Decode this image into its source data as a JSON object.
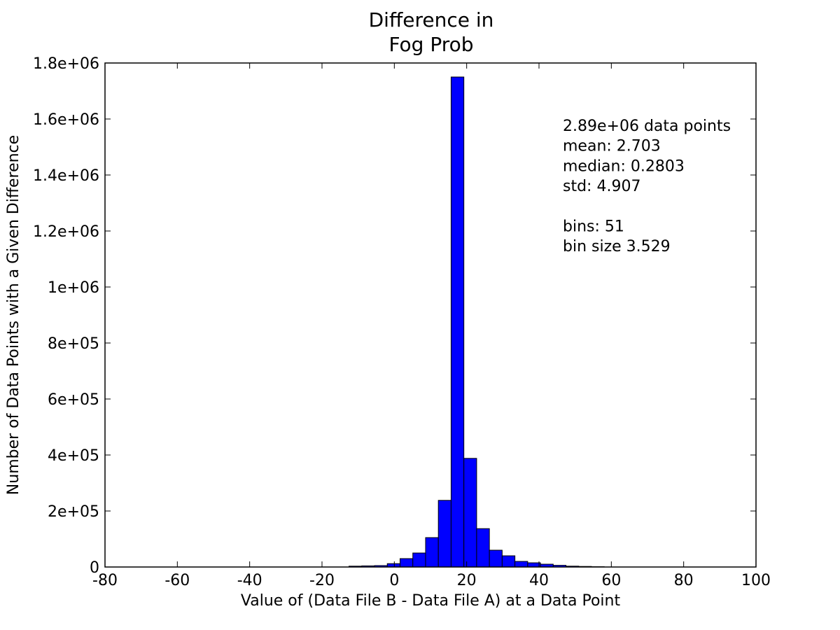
{
  "chart_data": {
    "type": "bar",
    "title": [
      "Difference in",
      "Fog Prob"
    ],
    "xlabel": "Value of (Data File B - Data File A) at a Data Point",
    "ylabel": "Number of Data Points with a Given Difference",
    "xlim": [
      -80,
      100
    ],
    "ylim": [
      0,
      1800000
    ],
    "grid": false,
    "bar_color": "#0000ff",
    "x_ticks": [
      {
        "value": -80,
        "label": "-80"
      },
      {
        "value": -60,
        "label": "-60"
      },
      {
        "value": -40,
        "label": "-40"
      },
      {
        "value": -20,
        "label": "-20"
      },
      {
        "value": 0,
        "label": "0"
      },
      {
        "value": 20,
        "label": "20"
      },
      {
        "value": 40,
        "label": "40"
      },
      {
        "value": 60,
        "label": "60"
      },
      {
        "value": 80,
        "label": "80"
      },
      {
        "value": 100,
        "label": "100"
      }
    ],
    "y_ticks": [
      {
        "value": 0,
        "label": "0"
      },
      {
        "value": 200000,
        "label": "2e+05"
      },
      {
        "value": 400000,
        "label": "4e+05"
      },
      {
        "value": 600000,
        "label": "6e+05"
      },
      {
        "value": 800000,
        "label": "8e+05"
      },
      {
        "value": 1000000,
        "label": "1e+06"
      },
      {
        "value": 1200000,
        "label": "1.2e+06"
      },
      {
        "value": 1400000,
        "label": "1.4e+06"
      },
      {
        "value": 1600000,
        "label": "1.6e+06"
      },
      {
        "value": 1800000,
        "label": "1.8e+06"
      }
    ],
    "bins": {
      "start": -93.7,
      "width": 3.529,
      "values": [
        0,
        0,
        0,
        0,
        0,
        0,
        0,
        0,
        0,
        0,
        0,
        0,
        0,
        0,
        0,
        0,
        0,
        0,
        0,
        0,
        0,
        0,
        0,
        3000,
        4000,
        5000,
        12000,
        30000,
        50000,
        105000,
        238000,
        1750000,
        388000,
        137000,
        60000,
        40000,
        20000,
        15000,
        10000,
        6000,
        3000,
        2000,
        1000,
        0,
        0,
        0,
        0,
        0,
        0,
        0,
        0
      ]
    },
    "annotation": [
      "2.89e+06 data points",
      "mean: 2.703",
      "median: 0.2803",
      "std: 4.907",
      "",
      "bins: 51",
      "bin size 3.529"
    ]
  }
}
